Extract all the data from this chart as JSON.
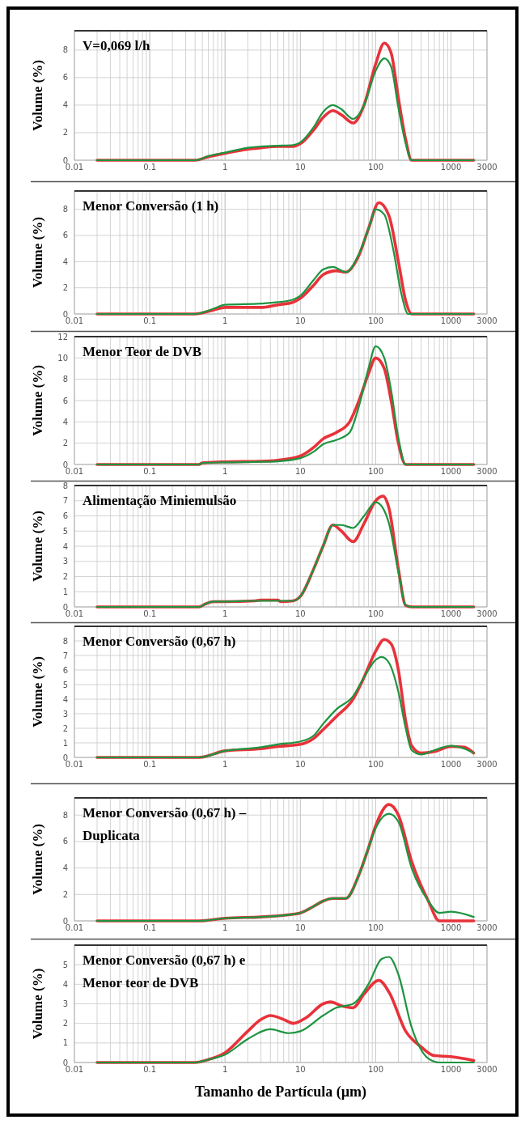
{
  "chart_data": [
    {
      "type": "line",
      "title": "V=0,069 l/h",
      "ylabel": "Volume (%)",
      "log": "x",
      "grid": true,
      "xlim": [
        0.01,
        3000
      ],
      "xticks": [
        0.01,
        0.1,
        1,
        10,
        100,
        1000,
        3000
      ],
      "ylim": [
        0,
        9.4
      ],
      "yticks": [
        0,
        2,
        4,
        6,
        8
      ],
      "series": [
        {
          "color": "#e8323a",
          "x": [
            0.02,
            0.4,
            0.6,
            1,
            2,
            3,
            5,
            8,
            10,
            15,
            20,
            27,
            35,
            50,
            70,
            100,
            130,
            160,
            200,
            250,
            300,
            2000
          ],
          "values": [
            0,
            0,
            0.25,
            0.5,
            0.8,
            0.9,
            1,
            1,
            1.2,
            2.2,
            3.1,
            3.6,
            3.3,
            2.7,
            4,
            7,
            8.5,
            7.8,
            4.5,
            1.5,
            0,
            0
          ]
        },
        {
          "color": "#1e9440",
          "x": [
            0.02,
            0.4,
            0.6,
            1,
            2,
            3,
            5,
            8,
            10,
            15,
            20,
            27,
            35,
            50,
            70,
            100,
            130,
            160,
            200,
            250,
            300,
            2000
          ],
          "values": [
            0,
            0,
            0.3,
            0.55,
            0.9,
            1,
            1.05,
            1.1,
            1.3,
            2.4,
            3.5,
            4,
            3.7,
            3,
            4,
            6.5,
            7.4,
            6.8,
            3.8,
            1.2,
            0,
            0
          ]
        }
      ]
    },
    {
      "type": "line",
      "title": "Menor Conversão (1 h)",
      "ylabel": "Volume (%)",
      "log": "x",
      "grid": true,
      "xlim": [
        0.01,
        3000
      ],
      "xticks": [
        0.01,
        0.1,
        1,
        10,
        100,
        1000,
        3000
      ],
      "ylim": [
        0,
        9.4
      ],
      "yticks": [
        0,
        2,
        4,
        6,
        8
      ],
      "series": [
        {
          "color": "#e8323a",
          "x": [
            0.02,
            0.4,
            0.7,
            1,
            3,
            5,
            8,
            10,
            15,
            20,
            30,
            40,
            60,
            80,
            110,
            150,
            200,
            250,
            300,
            2000
          ],
          "values": [
            0,
            0,
            0.3,
            0.5,
            0.5,
            0.7,
            0.9,
            1.2,
            2.2,
            3,
            3.3,
            3.2,
            4.5,
            6.5,
            8.5,
            7.5,
            4,
            1,
            0,
            0
          ]
        },
        {
          "color": "#1e9440",
          "x": [
            0.02,
            0.4,
            0.7,
            1,
            3,
            5,
            8,
            10,
            15,
            20,
            27,
            40,
            60,
            80,
            100,
            130,
            170,
            220,
            270,
            2000
          ],
          "values": [
            0,
            0,
            0.4,
            0.7,
            0.8,
            0.9,
            1.1,
            1.4,
            2.6,
            3.4,
            3.6,
            3.2,
            4.6,
            6.5,
            8,
            7.6,
            5,
            1.5,
            0,
            0
          ]
        }
      ]
    },
    {
      "type": "line",
      "title": "Menor Teor de DVB",
      "ylabel": "Volume (%)",
      "log": "x",
      "grid": true,
      "xlim": [
        0.01,
        3000
      ],
      "xticks": [
        0.01,
        0.1,
        1,
        10,
        100,
        1000,
        3000
      ],
      "ylim": [
        0,
        12
      ],
      "yticks": [
        0,
        2,
        4,
        6,
        8,
        10,
        12
      ],
      "series": [
        {
          "color": "#e8323a",
          "x": [
            0.02,
            0.45,
            0.5,
            1,
            3,
            5,
            10,
            15,
            20,
            30,
            45,
            60,
            80,
            100,
            130,
            160,
            200,
            250,
            2000
          ],
          "values": [
            0,
            0,
            0.15,
            0.25,
            0.3,
            0.4,
            0.8,
            1.6,
            2.4,
            3,
            4,
            6,
            8.5,
            10,
            9,
            6,
            2,
            0,
            0
          ]
        },
        {
          "color": "#1e9440",
          "x": [
            0.02,
            0.45,
            0.5,
            1,
            3,
            5,
            10,
            15,
            20,
            30,
            45,
            60,
            80,
            100,
            130,
            160,
            200,
            250,
            2000
          ],
          "values": [
            0,
            0,
            0.15,
            0.2,
            0.25,
            0.3,
            0.6,
            1.2,
            1.9,
            2.3,
            3,
            5.5,
            9,
            11.1,
            10,
            7,
            2.5,
            0,
            0
          ]
        }
      ]
    },
    {
      "type": "line",
      "title": "Alimentação Miniemulsão",
      "ylabel": "Volume (%)",
      "log": "x",
      "grid": true,
      "xlim": [
        0.01,
        3000
      ],
      "xticks": [
        0.01,
        0.1,
        1,
        10,
        100,
        1000,
        3000
      ],
      "ylim": [
        0,
        8
      ],
      "yticks": [
        0,
        1,
        2,
        3,
        4,
        5,
        6,
        7,
        8
      ],
      "series": [
        {
          "color": "#e8323a",
          "x": [
            0.02,
            0.45,
            0.55,
            0.7,
            1,
            2.5,
            3,
            5,
            5.5,
            8,
            10,
            15,
            20,
            27,
            35,
            50,
            70,
            100,
            125,
            150,
            200,
            250,
            300,
            2000
          ],
          "values": [
            0,
            0,
            0.2,
            0.35,
            0.35,
            0.4,
            0.45,
            0.45,
            0.35,
            0.4,
            0.7,
            2.5,
            4,
            5.4,
            5,
            4.3,
            5.5,
            7,
            7.3,
            6.5,
            2.5,
            0.1,
            0,
            0
          ]
        },
        {
          "color": "#1e9440",
          "x": [
            0.02,
            0.45,
            0.55,
            0.7,
            1,
            2.5,
            5,
            8,
            10,
            15,
            20,
            27,
            35,
            50,
            70,
            100,
            125,
            150,
            200,
            250,
            300,
            2000
          ],
          "values": [
            0,
            0,
            0.2,
            0.35,
            0.35,
            0.4,
            0.4,
            0.4,
            0.7,
            2.5,
            4,
            5.4,
            5.4,
            5.2,
            6,
            6.9,
            6.5,
            5.5,
            2.3,
            0.1,
            0,
            0
          ]
        }
      ]
    },
    {
      "type": "line",
      "title": "Menor Conversão (0,67 h)",
      "ylabel": "Volume (%)",
      "log": "x",
      "grid": true,
      "xlim": [
        0.01,
        3000
      ],
      "xticks": [
        0.01,
        0.1,
        1,
        10,
        100,
        1000,
        3000
      ],
      "ylim": [
        0,
        9
      ],
      "yticks": [
        0,
        1,
        2,
        3,
        4,
        5,
        6,
        7,
        8
      ],
      "series": [
        {
          "color": "#e8323a",
          "x": [
            0.02,
            0.45,
            1,
            3,
            5,
            10,
            15,
            20,
            30,
            50,
            70,
            100,
            130,
            160,
            200,
            250,
            300,
            400,
            600,
            1000,
            1500,
            2000
          ],
          "values": [
            0,
            0,
            0.45,
            0.6,
            0.75,
            0.9,
            1.3,
            1.9,
            2.8,
            4,
            5.5,
            7.3,
            8.1,
            7.8,
            6,
            2.5,
            0.8,
            0.3,
            0.4,
            0.75,
            0.7,
            0.3
          ]
        },
        {
          "color": "#1e9440",
          "x": [
            0.02,
            0.45,
            1,
            3,
            5,
            10,
            15,
            20,
            30,
            50,
            70,
            100,
            120,
            150,
            200,
            250,
            300,
            400,
            600,
            1000,
            1500,
            2000
          ],
          "values": [
            0,
            0,
            0.45,
            0.7,
            0.9,
            1.1,
            1.5,
            2.3,
            3.3,
            4.2,
            5.5,
            6.7,
            6.9,
            6.5,
            4.5,
            2,
            0.5,
            0.2,
            0.5,
            0.8,
            0.6,
            0.3
          ]
        }
      ]
    },
    {
      "type": "line",
      "title": "Menor Conversão (0,67 h) –\nDuplicata",
      "ylabel": "Volume (%)",
      "log": "x",
      "grid": true,
      "xlim": [
        0.01,
        3000
      ],
      "xticks": [
        0.01,
        0.1,
        1,
        10,
        100,
        1000,
        3000
      ],
      "ylim": [
        0,
        9.3
      ],
      "yticks": [
        0,
        2,
        4,
        6,
        8
      ],
      "series": [
        {
          "color": "#e8323a",
          "x": [
            0.02,
            0.45,
            1,
            3,
            8,
            10,
            15,
            20,
            27,
            40,
            60,
            80,
            100,
            150,
            200,
            300,
            500,
            700,
            2000
          ],
          "values": [
            0,
            0,
            0.2,
            0.3,
            0.5,
            0.6,
            1.1,
            1.5,
            1.7,
            1.7,
            3.5,
            5.5,
            7.2,
            8.8,
            8,
            4.5,
            1.5,
            0,
            0
          ]
        },
        {
          "color": "#1e9440",
          "x": [
            0.02,
            0.45,
            1,
            3,
            8,
            10,
            15,
            20,
            27,
            40,
            60,
            80,
            100,
            150,
            200,
            300,
            500,
            700,
            1000,
            2000
          ],
          "values": [
            0,
            0,
            0.2,
            0.3,
            0.5,
            0.6,
            1.1,
            1.5,
            1.7,
            1.7,
            3.5,
            5.5,
            7,
            8.1,
            7.5,
            4,
            1.5,
            0.6,
            0.7,
            0.3
          ]
        }
      ]
    },
    {
      "type": "line",
      "title": "Menor Conversão (0,67 h) e\nMenor teor de DVB",
      "xlabel": "Tamanho de Partícula (µm)",
      "ylabel": "Volume (%)",
      "log": "x",
      "grid": true,
      "xlim": [
        0.01,
        3000
      ],
      "xticks": [
        0.01,
        0.1,
        1,
        10,
        100,
        1000,
        3000
      ],
      "ylim": [
        0,
        6
      ],
      "yticks": [
        0,
        1,
        2,
        3,
        4,
        5
      ],
      "series": [
        {
          "color": "#e8323a",
          "x": [
            0.02,
            0.4,
            0.6,
            1,
            2,
            3,
            4,
            6,
            8,
            12,
            20,
            25,
            35,
            50,
            70,
            110,
            150,
            250,
            400,
            600,
            1000,
            2000
          ],
          "values": [
            0,
            0,
            0.15,
            0.5,
            1.6,
            2.2,
            2.4,
            2.2,
            2,
            2.3,
            3,
            3.1,
            2.9,
            2.8,
            3.5,
            4.2,
            3.6,
            1.6,
            0.8,
            0.35,
            0.3,
            0.1
          ]
        },
        {
          "color": "#1e9440",
          "x": [
            0.02,
            0.4,
            0.6,
            1,
            2,
            4,
            7,
            10,
            20,
            30,
            50,
            80,
            120,
            150,
            200,
            300,
            500,
            700,
            2000
          ],
          "values": [
            0,
            0,
            0.15,
            0.4,
            1.2,
            1.7,
            1.5,
            1.6,
            2.4,
            2.8,
            3,
            4,
            5.3,
            5.4,
            4.5,
            1.8,
            0.2,
            0,
            0
          ]
        }
      ]
    }
  ]
}
